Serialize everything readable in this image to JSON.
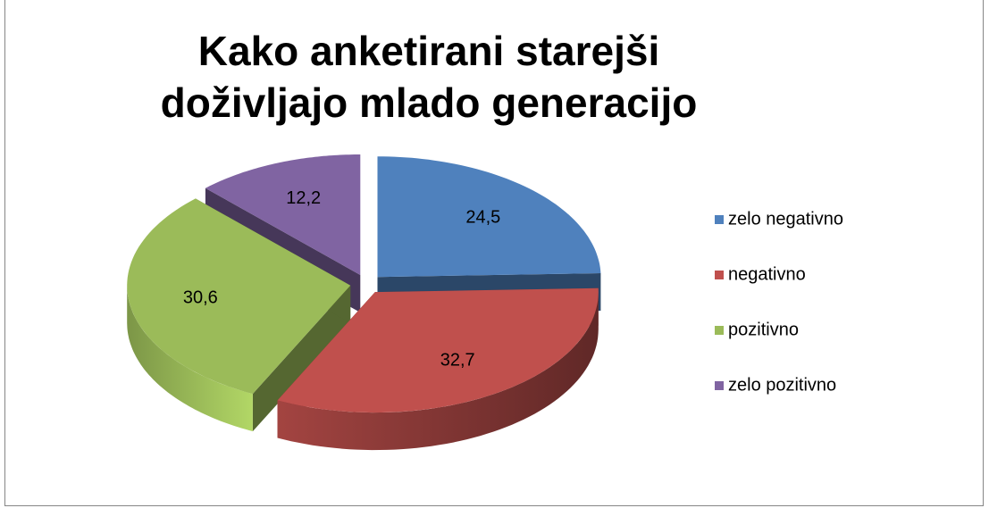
{
  "chart_data": {
    "type": "pie3d",
    "title": "Kako anketirani starejši doživljajo mlado generacijo",
    "categories": [
      "zelo negativno",
      "negativno",
      "pozitivno",
      "zelo pozitivno"
    ],
    "values": [
      24.5,
      32.7,
      30.6,
      12.2
    ],
    "value_labels": [
      "24,5",
      "32,7",
      "30,6",
      "12,2"
    ],
    "colors": [
      "#4f81bd",
      "#c0504d",
      "#9bbb59",
      "#8064a2"
    ],
    "legend": "right"
  }
}
